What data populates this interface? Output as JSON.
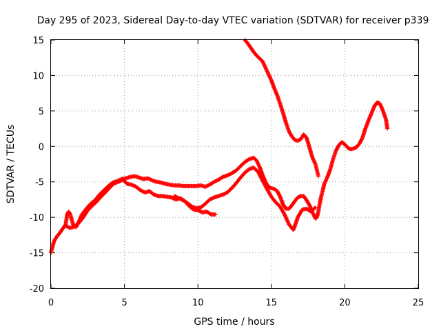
{
  "chart_data": {
    "type": "scatter",
    "title": "Day 295 of 2023, Sidereal Day-to-day VTEC variation (SDTVAR) for receiver p339",
    "xlabel": "GPS time / hours",
    "ylabel": "SDTVAR / TECUs",
    "xlim": [
      0,
      25
    ],
    "ylim": [
      -20,
      15
    ],
    "xticks": [
      0,
      5,
      10,
      15,
      20,
      25
    ],
    "yticks": [
      -20,
      -15,
      -10,
      -5,
      0,
      5,
      10,
      15
    ],
    "xtick_labels": [
      "0",
      "5",
      "10",
      "15",
      "20",
      "25"
    ],
    "ytick_labels": [
      "-20",
      "-15",
      "-10",
      "-5",
      "0",
      "5",
      "10",
      "15"
    ],
    "grid": true,
    "marker": "+",
    "color": "#ff0000",
    "series": [
      {
        "x": [
          0.0,
          0.1,
          0.2,
          0.4,
          0.6,
          0.8,
          1.0,
          1.1,
          1.2,
          1.3,
          1.5,
          1.7,
          1.9,
          2.1,
          2.4,
          2.7,
          3.0,
          3.3,
          3.6,
          3.9,
          4.2,
          4.5,
          4.8,
          5.1,
          5.4,
          5.7,
          6.0,
          6.3,
          6.6,
          6.9,
          7.2,
          7.5,
          7.8,
          8.1,
          8.4,
          8.7,
          9.0,
          9.3,
          9.6,
          9.9,
          10.2,
          10.5,
          10.8,
          11.1,
          11.4,
          11.7,
          12.0,
          12.3,
          12.6,
          12.9,
          13.2,
          13.5,
          13.8,
          14.0,
          14.2,
          14.4,
          14.6,
          14.8,
          15.0,
          15.2,
          15.4,
          15.6,
          15.8,
          16.0,
          16.2,
          16.4,
          16.6,
          16.8,
          17.0,
          17.2,
          17.4,
          17.6,
          17.8,
          18.0,
          18.1,
          18.2,
          18.3,
          18.4,
          18.5,
          18.6,
          18.8,
          19.0,
          19.2,
          19.4,
          19.6,
          19.8,
          20.0,
          20.2,
          20.4,
          20.6,
          20.8,
          21.0,
          21.2,
          21.4,
          21.6,
          21.8,
          22.0,
          22.2,
          22.4,
          22.6,
          22.8,
          22.9
        ],
        "y": [
          -15.0,
          -14.2,
          -13.4,
          -12.7,
          -12.2,
          -11.6,
          -11.0,
          -9.6,
          -9.2,
          -9.5,
          -11.0,
          -11.4,
          -10.6,
          -9.6,
          -8.8,
          -8.1,
          -7.6,
          -6.8,
          -6.2,
          -5.6,
          -5.1,
          -4.9,
          -4.6,
          -4.5,
          -4.3,
          -4.2,
          -4.4,
          -4.6,
          -4.5,
          -4.8,
          -5.0,
          -5.1,
          -5.3,
          -5.4,
          -5.5,
          -5.5,
          -5.6,
          -5.6,
          -5.6,
          -5.6,
          -5.5,
          -5.7,
          -5.4,
          -5.0,
          -4.7,
          -4.3,
          -4.1,
          -3.8,
          -3.4,
          -2.8,
          -2.2,
          -1.8,
          -1.6,
          -2.0,
          -2.9,
          -4.0,
          -5.0,
          -5.7,
          -5.9,
          -6.0,
          -6.3,
          -7.1,
          -8.2,
          -8.8,
          -8.8,
          -8.3,
          -7.7,
          -7.2,
          -7.0,
          -7.0,
          -7.6,
          -8.3,
          -9.3,
          -10.2,
          -10.0,
          -9.2,
          -8.0,
          -7.0,
          -6.2,
          -5.3,
          -4.4,
          -3.3,
          -1.8,
          -0.6,
          0.2,
          0.6,
          0.3,
          -0.2,
          -0.4,
          -0.3,
          -0.1,
          0.4,
          1.2,
          2.5,
          3.6,
          4.6,
          5.6,
          6.2,
          6.0,
          5.0,
          3.8,
          2.5
        ]
      },
      {
        "x": [
          1.0,
          1.3,
          1.6,
          1.9,
          2.2,
          2.5,
          2.8,
          3.1,
          3.4,
          3.7,
          4.0,
          4.3,
          4.6,
          4.9,
          5.2,
          5.5,
          5.8,
          6.1,
          6.4,
          6.7,
          7.0,
          7.3,
          7.6,
          7.9,
          8.2,
          8.5,
          8.8,
          9.1,
          9.4,
          9.7,
          10.0,
          10.3,
          10.6,
          10.9,
          11.2
        ],
        "y": [
          -11.2,
          -11.5,
          -11.3,
          -10.8,
          -10.0,
          -9.0,
          -8.4,
          -7.8,
          -7.1,
          -6.5,
          -5.8,
          -5.2,
          -5.0,
          -4.7,
          -5.3,
          -5.4,
          -5.7,
          -6.2,
          -6.5,
          -6.3,
          -6.8,
          -7.0,
          -7.0,
          -7.1,
          -7.2,
          -7.5,
          -7.3,
          -7.7,
          -8.4,
          -8.9,
          -9.0,
          -9.3,
          -9.2,
          -9.6,
          -9.6
        ]
      },
      {
        "x": [
          8.4,
          8.7,
          9.0,
          9.3,
          9.6,
          9.9,
          10.2,
          10.5,
          10.8,
          11.1,
          11.4,
          11.7,
          12.0,
          12.3,
          12.6,
          12.9,
          13.2,
          13.5,
          13.8,
          14.1,
          14.4,
          14.7,
          15.0,
          15.3,
          15.6,
          15.9,
          16.2,
          16.5,
          16.8,
          17.1,
          17.4,
          17.7,
          18.0
        ],
        "y": [
          -7.0,
          -7.3,
          -7.6,
          -8.0,
          -8.5,
          -8.7,
          -8.6,
          -8.1,
          -7.5,
          -7.2,
          -7.0,
          -6.8,
          -6.5,
          -5.9,
          -5.2,
          -4.4,
          -3.7,
          -3.2,
          -3.0,
          -3.6,
          -4.8,
          -6.0,
          -7.1,
          -7.9,
          -8.5,
          -9.6,
          -11.0,
          -11.8,
          -10.0,
          -8.9,
          -8.8,
          -9.2,
          -8.6
        ]
      },
      {
        "x": [
          13.2,
          13.4,
          13.6,
          13.8,
          14.0,
          14.2,
          14.4,
          14.6,
          14.8,
          15.0,
          15.2,
          15.4,
          15.6,
          15.8,
          16.0,
          16.2,
          16.4,
          16.6,
          16.8,
          17.0,
          17.2,
          17.4,
          17.6,
          17.8,
          18.0,
          18.2
        ],
        "y": [
          15.0,
          14.5,
          13.9,
          13.3,
          12.8,
          12.4,
          12.0,
          11.1,
          10.2,
          9.3,
          8.2,
          7.2,
          6.0,
          4.7,
          3.3,
          2.1,
          1.4,
          0.9,
          0.8,
          1.0,
          1.7,
          1.2,
          -0.2,
          -1.6,
          -2.5,
          -4.2
        ]
      }
    ]
  }
}
